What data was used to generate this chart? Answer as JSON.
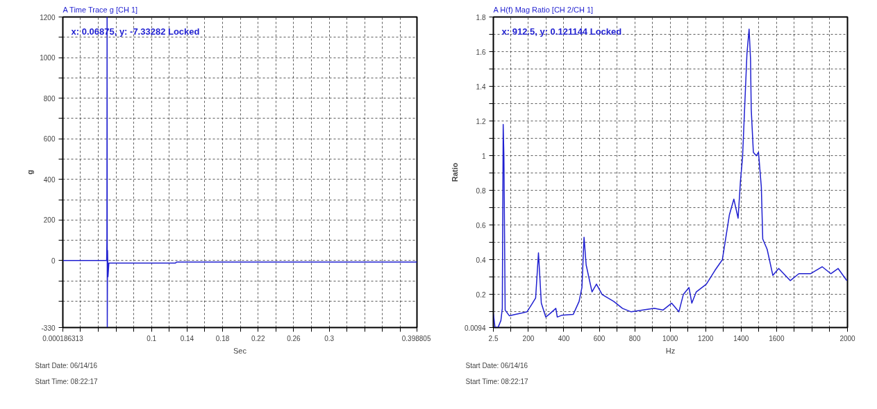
{
  "chart_data": [
    {
      "type": "line",
      "title": "A Time Trace g [CH 1]",
      "xlabel": "Sec",
      "ylabel": "g",
      "grid": true,
      "line_style": "solid",
      "marker": "none",
      "annotations": [
        "x: 0.06875, y: -7.33282 Locked",
        "Start Date: 06/14/16",
        "Start Time: 08:22:17"
      ],
      "xlim": [
        0.000186313,
        0.398805
      ],
      "ylim": [
        -330,
        1200
      ],
      "xticks": [
        {
          "value": 0.000186313,
          "label": "0.000186313"
        },
        {
          "value": 0.02,
          "label": null
        },
        {
          "value": 0.04,
          "label": null
        },
        {
          "value": 0.06,
          "label": null
        },
        {
          "value": 0.08,
          "label": null
        },
        0.1,
        {
          "value": 0.12,
          "label": null
        },
        0.14,
        {
          "value": 0.16,
          "label": null
        },
        0.18,
        {
          "value": 0.2,
          "label": null
        },
        0.22,
        {
          "value": 0.24,
          "label": null
        },
        0.26,
        {
          "value": 0.28,
          "label": null
        },
        0.3,
        {
          "value": 0.32,
          "label": null
        },
        {
          "value": 0.34,
          "label": null
        },
        {
          "value": 0.36,
          "label": null
        },
        {
          "value": 0.38,
          "label": null
        },
        0.398805
      ],
      "yticks": [
        -330,
        {
          "value": -200,
          "label": null
        },
        {
          "value": -100,
          "label": null
        },
        0,
        {
          "value": 100,
          "label": null
        },
        200,
        {
          "value": 300,
          "label": null
        },
        400,
        {
          "value": 500,
          "label": null
        },
        600,
        {
          "value": 700,
          "label": null
        },
        800,
        {
          "value": 900,
          "label": null
        },
        1000,
        {
          "value": 1100,
          "label": null
        },
        1200
      ],
      "series": [
        {
          "color": "#1f1fd0",
          "x": [
            0.000186313,
            0.02,
            0.04,
            0.0495,
            0.0498,
            0.05,
            0.0502,
            0.0505,
            0.051,
            0.052,
            0.08,
            0.127,
            0.128,
            0.2,
            0.3,
            0.398805
          ],
          "values": [
            0,
            0,
            0,
            0,
            100,
            1200,
            -330,
            50,
            -80,
            -12,
            -12,
            -12,
            -7,
            -7,
            -7,
            -7
          ]
        }
      ]
    },
    {
      "type": "line",
      "title": "A H(f) Mag Ratio [CH 2/CH 1]",
      "xlabel": "Hz",
      "ylabel": "Ratio",
      "grid": true,
      "line_style": "solid",
      "marker": "none",
      "annotations": [
        "x: 912.5, y: 0.121144 Locked",
        "Start Date: 06/14/16",
        "Start Time: 08:22:17"
      ],
      "xlim": [
        2.5,
        2000
      ],
      "ylim": [
        0.0094,
        1.8
      ],
      "xticks": [
        2.5,
        {
          "value": 100,
          "label": null
        },
        200,
        {
          "value": 300,
          "label": null
        },
        400,
        {
          "value": 500,
          "label": null
        },
        600,
        {
          "value": 700,
          "label": null
        },
        800,
        {
          "value": 900,
          "label": null
        },
        1000,
        {
          "value": 1100,
          "label": null
        },
        1200,
        {
          "value": 1300,
          "label": null
        },
        1400,
        {
          "value": 1500,
          "label": null
        },
        1600,
        {
          "value": 1700,
          "label": null
        },
        {
          "value": 1800,
          "label": null
        },
        {
          "value": 1900,
          "label": null
        },
        2000
      ],
      "yticks": [
        0.0094,
        {
          "value": 0.1,
          "label": null
        },
        0.2,
        {
          "value": 0.3,
          "label": null
        },
        0.4,
        {
          "value": 0.5,
          "label": null
        },
        0.6,
        {
          "value": 0.7,
          "label": null
        },
        0.8,
        {
          "value": 0.9,
          "label": null
        },
        1,
        {
          "value": 1.1,
          "label": null
        },
        1.2,
        {
          "value": 1.3,
          "label": null
        },
        1.4,
        {
          "value": 1.5,
          "label": null
        },
        1.6,
        {
          "value": 1.7,
          "label": null
        },
        1.8
      ],
      "series": [
        {
          "color": "#1f1fd0",
          "x": [
            2.5,
            12,
            29,
            45,
            53,
            58,
            62,
            69,
            93,
            127,
            160,
            192,
            217,
            241,
            257,
            273,
            298,
            322,
            355,
            363,
            388,
            453,
            486,
            502,
            514,
            526,
            559,
            584,
            616,
            682,
            731,
            780,
            845,
            910,
            959,
            1008,
            1049,
            1074,
            1106,
            1122,
            1147,
            1204,
            1253,
            1294,
            1334,
            1359,
            1383,
            1396,
            1408,
            1433,
            1445,
            1453,
            1457,
            1469,
            1486,
            1498,
            1514,
            1522,
            1547,
            1579,
            1612,
            1677,
            1726,
            1791,
            1857,
            1906,
            1947,
            1996
          ],
          "values": [
            0.09,
            0.01,
            0.01,
            0.05,
            0.12,
            1.18,
            1.0,
            0.11,
            0.077,
            0.085,
            0.092,
            0.1,
            0.14,
            0.18,
            0.44,
            0.15,
            0.07,
            0.09,
            0.12,
            0.07,
            0.08,
            0.085,
            0.16,
            0.24,
            0.53,
            0.37,
            0.215,
            0.26,
            0.2,
            0.16,
            0.12,
            0.1,
            0.11,
            0.12,
            0.11,
            0.15,
            0.1,
            0.2,
            0.24,
            0.15,
            0.215,
            0.26,
            0.34,
            0.4,
            0.66,
            0.75,
            0.64,
            0.85,
            0.99,
            1.59,
            1.73,
            1.56,
            1.27,
            1.02,
            1.0,
            1.02,
            0.82,
            0.52,
            0.46,
            0.31,
            0.35,
            0.28,
            0.32,
            0.32,
            0.36,
            0.32,
            0.35,
            0.28
          ]
        }
      ]
    }
  ]
}
